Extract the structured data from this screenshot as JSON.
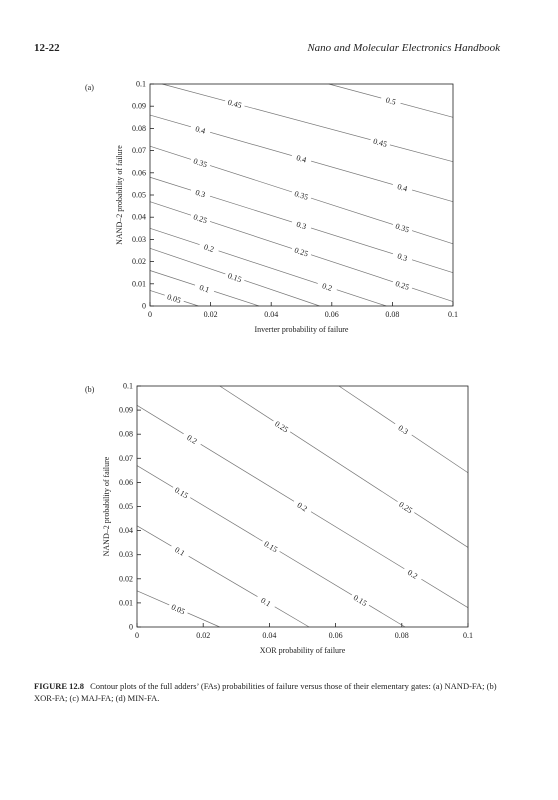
{
  "header": {
    "page": "12-22",
    "title": "Nano and Molecular Electronics Handbook"
  },
  "chart_data": [
    {
      "type": "contour",
      "panel": "(a)",
      "xlabel": "Inverter probability of failure",
      "ylabel": "NAND–2 probability of failure",
      "xlim": [
        0,
        0.1
      ],
      "ylim": [
        0,
        0.1
      ],
      "xticks": [
        0,
        0.02,
        0.04,
        0.06,
        0.08,
        0.1
      ],
      "yticks": [
        0,
        0.01,
        0.02,
        0.03,
        0.04,
        0.05,
        0.06,
        0.07,
        0.08,
        0.09,
        0.1
      ],
      "color": "#777777",
      "contours": [
        {
          "level": 0.05,
          "x": [
            0,
            0.016
          ],
          "y": [
            0.007,
            0
          ]
        },
        {
          "level": 0.1,
          "x": [
            0,
            0.036
          ],
          "y": [
            0.016,
            0
          ]
        },
        {
          "level": 0.15,
          "x": [
            0,
            0.056
          ],
          "y": [
            0.026,
            0
          ]
        },
        {
          "level": 0.2,
          "x": [
            0,
            0.078
          ],
          "y": [
            0.035,
            0
          ]
        },
        {
          "level": 0.25,
          "x": [
            0,
            0.1
          ],
          "y": [
            0.047,
            0.002
          ]
        },
        {
          "level": 0.3,
          "x": [
            0,
            0.1
          ],
          "y": [
            0.058,
            0.015
          ]
        },
        {
          "level": 0.35,
          "x": [
            0,
            0.1
          ],
          "y": [
            0.072,
            0.028
          ]
        },
        {
          "level": 0.4,
          "x": [
            0,
            0.1
          ],
          "y": [
            0.086,
            0.047
          ]
        },
        {
          "level": 0.45,
          "x": [
            0.004,
            0.1
          ],
          "y": [
            0.1,
            0.065
          ]
        },
        {
          "level": 0.5,
          "x": [
            0.059,
            0.1
          ],
          "y": [
            0.1,
            0.085
          ]
        }
      ]
    },
    {
      "type": "contour",
      "panel": "(b)",
      "xlabel": "XOR probability of failure",
      "ylabel": "NAND–2 probability of failure",
      "xlim": [
        0,
        0.1
      ],
      "ylim": [
        0,
        0.1
      ],
      "xticks": [
        0,
        0.02,
        0.04,
        0.06,
        0.08,
        0.1
      ],
      "yticks": [
        0,
        0.01,
        0.02,
        0.03,
        0.04,
        0.05,
        0.06,
        0.07,
        0.08,
        0.09,
        0.1
      ],
      "color": "#777777",
      "contours": [
        {
          "level": 0.05,
          "x": [
            0,
            0.025
          ],
          "y": [
            0.015,
            0
          ]
        },
        {
          "level": 0.1,
          "x": [
            0,
            0.052
          ],
          "y": [
            0.042,
            0
          ]
        },
        {
          "level": 0.15,
          "x": [
            0,
            0.081
          ],
          "y": [
            0.067,
            0
          ]
        },
        {
          "level": 0.2,
          "x": [
            0,
            0.1
          ],
          "y": [
            0.092,
            0.008
          ]
        },
        {
          "level": 0.25,
          "x": [
            0.025,
            0.1
          ],
          "y": [
            0.1,
            0.033
          ]
        },
        {
          "level": 0.3,
          "x": [
            0.061,
            0.1
          ],
          "y": [
            0.1,
            0.064
          ]
        }
      ]
    }
  ],
  "caption": {
    "label": "FIGURE 12.8",
    "text": "Contour plots of the full adders’ (FAs) probabilities of failure versus those of their elementary gates: (a) NAND-FA; (b) XOR-FA; (c) MAJ-FA; (d) MIN-FA."
  }
}
